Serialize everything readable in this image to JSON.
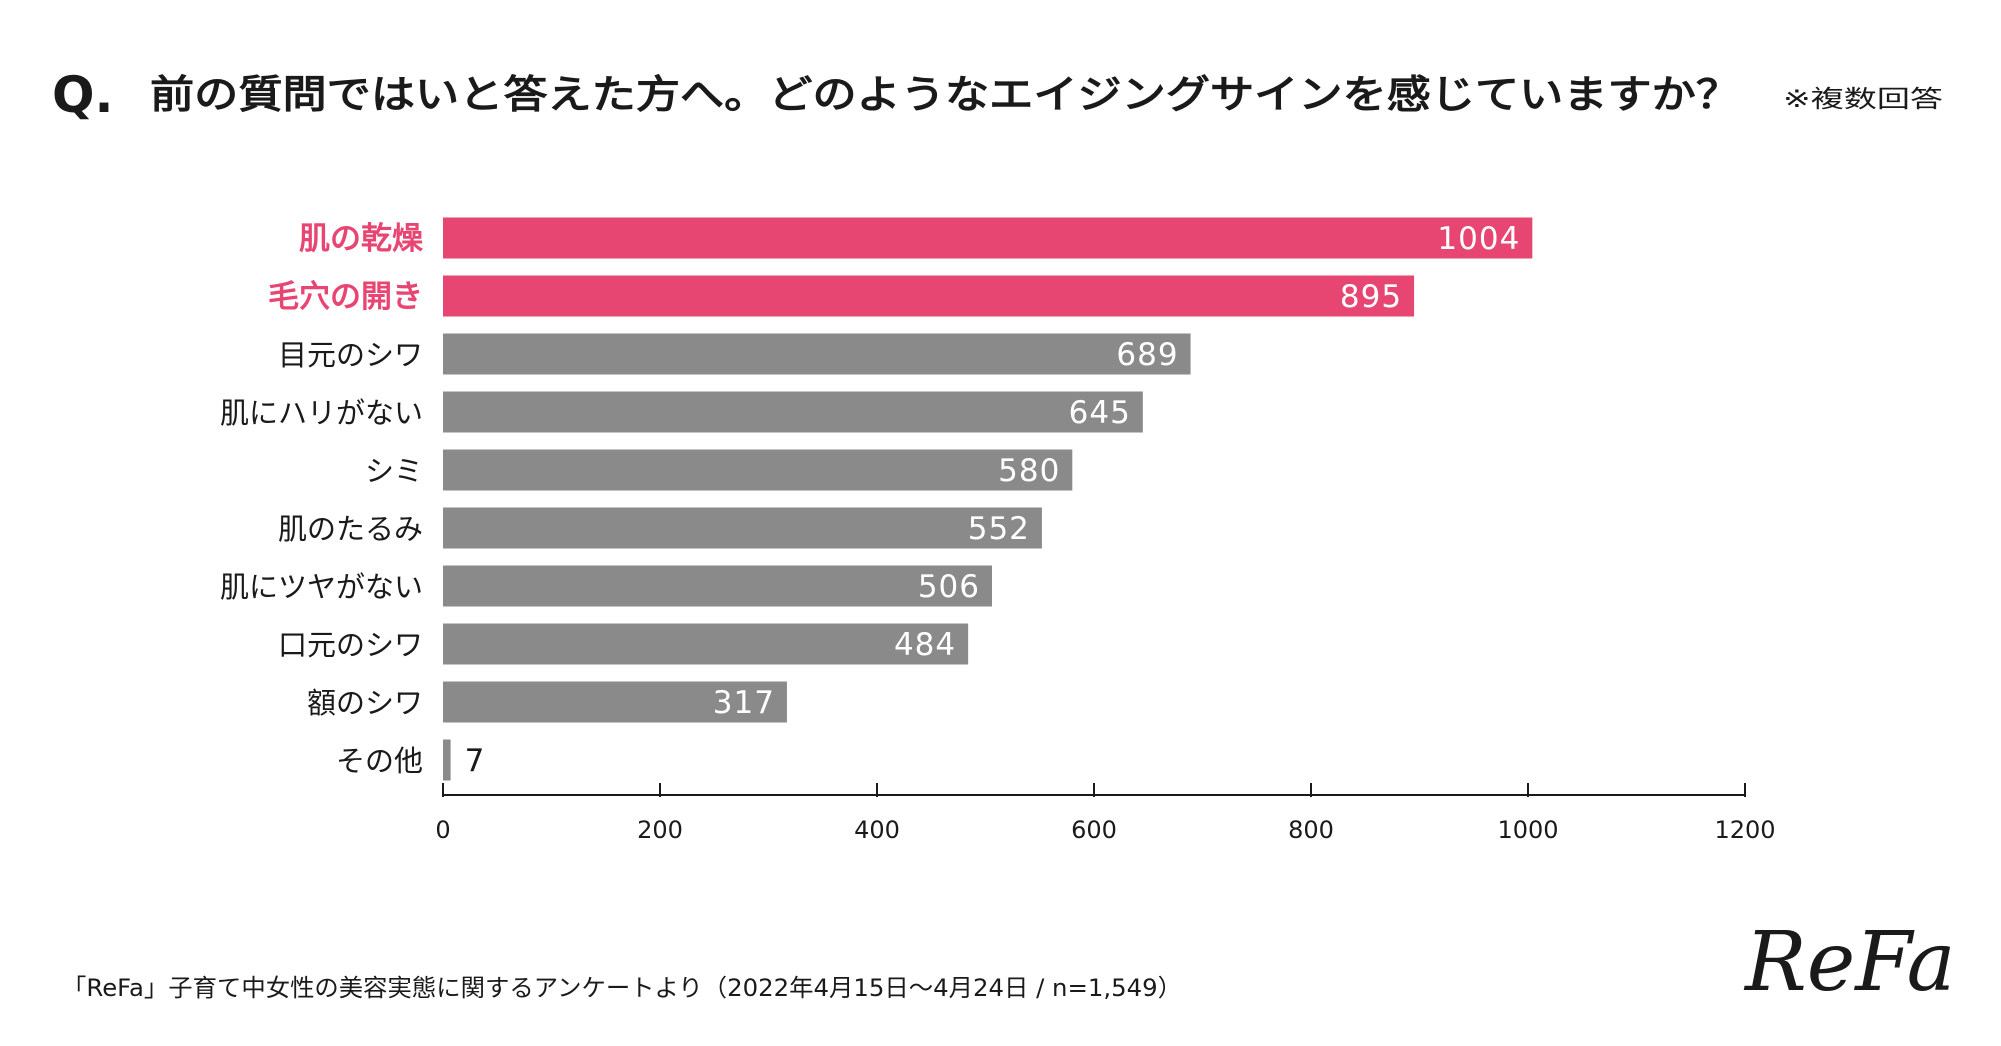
{
  "chart_data": {
    "type": "bar",
    "orientation": "horizontal",
    "question_prefix": "Q.",
    "title": "前の質問ではいと答えた方へ。どのようなエイジングサインを感じていますか？",
    "subtitle": "※複数回答",
    "categories": [
      "肌の乾燥",
      "毛穴の開き",
      "目元のシワ",
      "肌にハリがない",
      "シミ",
      "肌のたるみ",
      "肌にツヤがない",
      "口元のシワ",
      "額のシワ",
      "その他"
    ],
    "values": [
      1004,
      895,
      689,
      645,
      580,
      552,
      506,
      484,
      317,
      7
    ],
    "highlighted": [
      true,
      true,
      false,
      false,
      false,
      false,
      false,
      false,
      false,
      false
    ],
    "value_labels": [
      "1004",
      "895",
      "689",
      "645",
      "580",
      "552",
      "506",
      "484",
      "317",
      "7"
    ],
    "xlim": [
      0,
      1200
    ],
    "xticks": [
      0,
      200,
      400,
      600,
      800,
      1000,
      1200
    ],
    "xtick_labels": [
      "0",
      "200",
      "400",
      "600",
      "800",
      "1000",
      "1200"
    ],
    "xlabel": "",
    "ylabel": "",
    "grid": false,
    "legend": "none",
    "colors": {
      "highlight_bar": "#e84672",
      "highlight_label": "#e84672",
      "default_bar": "#8a8a8a",
      "default_label": "#1a1a1a",
      "axis": "#1a1a1a"
    }
  },
  "footer": {
    "source": "「ReFa」子育て中女性の美容実態に関するアンケートより（2022年4月15日〜4月24日 / n=1,549）"
  },
  "brand": {
    "logo_text": "ReFa"
  }
}
